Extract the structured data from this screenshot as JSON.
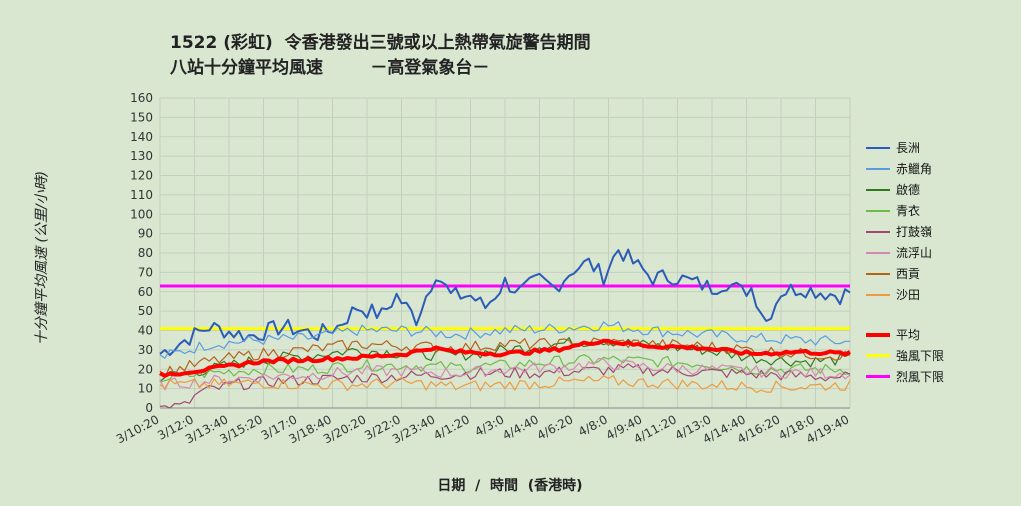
{
  "title_line1": "1522 (彩虹)  令香港發出三號或以上熱帶氣旋警告期間",
  "title_line2": "八站十分鐘平均風速        －高登氣象台－",
  "chart_data": {
    "type": "line",
    "xlabel": "日期  /  時間  (香港時)",
    "ylabel": "十分鐘平均風速 (公里/小時)",
    "ylim": [
      0,
      160
    ],
    "yticks": [
      0,
      10,
      20,
      30,
      40,
      50,
      60,
      70,
      80,
      90,
      100,
      110,
      120,
      130,
      140,
      150,
      160
    ],
    "grid": true,
    "legend_position": "right",
    "x_tick_labels": [
      "3/10:20",
      "3/12:0",
      "3/13:40",
      "3/15:20",
      "3/17:0",
      "3/18:40",
      "3/20:20",
      "3/22:0",
      "3/23:40",
      "4/1:20",
      "4/3:0",
      "4/4:40",
      "4/6:20",
      "4/8:0",
      "4/9:40",
      "4/11:20",
      "4/13:0",
      "4/14:40",
      "4/16:20",
      "4/18:0",
      "4/19:40"
    ],
    "reference_lines": [
      {
        "name": "強風下限",
        "value": 41,
        "color": "#ffff00"
      },
      {
        "name": "烈風下限",
        "value": 63,
        "color": "#ff00ff"
      }
    ],
    "series": [
      {
        "name": "長洲",
        "color": "#2a5cb8",
        "width": 2,
        "anchors": [
          [
            0,
            28
          ],
          [
            5,
            35
          ],
          [
            10,
            42
          ],
          [
            18,
            37
          ],
          [
            25,
            42
          ],
          [
            32,
            38
          ],
          [
            36,
            42
          ],
          [
            40,
            52
          ],
          [
            45,
            48
          ],
          [
            48,
            58
          ],
          [
            52,
            46
          ],
          [
            56,
            70
          ],
          [
            59,
            58
          ],
          [
            63,
            58
          ],
          [
            66,
            52
          ],
          [
            70,
            65
          ],
          [
            73,
            60
          ],
          [
            77,
            66
          ],
          [
            80,
            62
          ],
          [
            84,
            72
          ],
          [
            87,
            75
          ],
          [
            90,
            68
          ],
          [
            93,
            82
          ],
          [
            96,
            75
          ],
          [
            100,
            67
          ],
          [
            104,
            68
          ],
          [
            108,
            65
          ],
          [
            112,
            62
          ],
          [
            115,
            65
          ],
          [
            118,
            60
          ],
          [
            120,
            62
          ],
          [
            123,
            45
          ],
          [
            126,
            60
          ],
          [
            130,
            62
          ],
          [
            134,
            60
          ],
          [
            138,
            58
          ],
          [
            140,
            60
          ]
        ]
      },
      {
        "name": "赤鱲角",
        "color": "#5a9be0",
        "width": 1.2,
        "anchors": [
          [
            0,
            26
          ],
          [
            10,
            33
          ],
          [
            20,
            35
          ],
          [
            30,
            36
          ],
          [
            40,
            40
          ],
          [
            50,
            40
          ],
          [
            60,
            38
          ],
          [
            70,
            40
          ],
          [
            80,
            41
          ],
          [
            90,
            43
          ],
          [
            100,
            40
          ],
          [
            110,
            38
          ],
          [
            120,
            36
          ],
          [
            130,
            35
          ],
          [
            140,
            34
          ]
        ]
      },
      {
        "name": "啟德",
        "color": "#2e7a1e",
        "width": 1.2,
        "anchors": [
          [
            0,
            16
          ],
          [
            10,
            20
          ],
          [
            20,
            25
          ],
          [
            30,
            27
          ],
          [
            40,
            30
          ],
          [
            50,
            28
          ],
          [
            60,
            27
          ],
          [
            70,
            30
          ],
          [
            80,
            33
          ],
          [
            90,
            35
          ],
          [
            100,
            32
          ],
          [
            110,
            30
          ],
          [
            120,
            26
          ],
          [
            130,
            24
          ],
          [
            140,
            25
          ]
        ]
      },
      {
        "name": "青衣",
        "color": "#6fbb4a",
        "width": 1.2,
        "anchors": [
          [
            0,
            15
          ],
          [
            10,
            18
          ],
          [
            20,
            20
          ],
          [
            30,
            20
          ],
          [
            40,
            22
          ],
          [
            50,
            22
          ],
          [
            60,
            21
          ],
          [
            70,
            22
          ],
          [
            80,
            24
          ],
          [
            90,
            25
          ],
          [
            100,
            24
          ],
          [
            110,
            23
          ],
          [
            120,
            20
          ],
          [
            130,
            20
          ],
          [
            140,
            20
          ]
        ]
      },
      {
        "name": "打鼓嶺",
        "color": "#a04870",
        "width": 1.2,
        "anchors": [
          [
            0,
            0
          ],
          [
            5,
            1
          ],
          [
            8,
            8
          ],
          [
            15,
            12
          ],
          [
            25,
            14
          ],
          [
            35,
            15
          ],
          [
            45,
            16
          ],
          [
            55,
            17
          ],
          [
            65,
            18
          ],
          [
            75,
            18
          ],
          [
            85,
            19
          ],
          [
            95,
            20
          ],
          [
            105,
            19
          ],
          [
            115,
            18
          ],
          [
            125,
            17
          ],
          [
            135,
            16
          ],
          [
            140,
            16
          ]
        ]
      },
      {
        "name": "流浮山",
        "color": "#d38ab0",
        "width": 1.2,
        "anchors": [
          [
            0,
            12
          ],
          [
            10,
            14
          ],
          [
            20,
            16
          ],
          [
            30,
            17
          ],
          [
            40,
            19
          ],
          [
            50,
            19
          ],
          [
            60,
            18
          ],
          [
            70,
            20
          ],
          [
            80,
            21
          ],
          [
            90,
            23
          ],
          [
            100,
            21
          ],
          [
            110,
            20
          ],
          [
            120,
            19
          ],
          [
            130,
            18
          ],
          [
            140,
            18
          ]
        ]
      },
      {
        "name": "西貢",
        "color": "#b4621a",
        "width": 1.2,
        "anchors": [
          [
            0,
            18
          ],
          [
            10,
            24
          ],
          [
            20,
            28
          ],
          [
            30,
            30
          ],
          [
            40,
            33
          ],
          [
            50,
            32
          ],
          [
            60,
            31
          ],
          [
            70,
            33
          ],
          [
            80,
            33
          ],
          [
            90,
            34
          ],
          [
            100,
            33
          ],
          [
            110,
            32
          ],
          [
            120,
            30
          ],
          [
            130,
            28
          ],
          [
            140,
            27
          ]
        ]
      },
      {
        "name": "沙田",
        "color": "#eb9c3e",
        "width": 1.2,
        "anchors": [
          [
            0,
            12
          ],
          [
            10,
            12
          ],
          [
            20,
            13
          ],
          [
            30,
            12
          ],
          [
            40,
            12
          ],
          [
            50,
            13
          ],
          [
            60,
            11
          ],
          [
            70,
            12
          ],
          [
            80,
            13
          ],
          [
            90,
            14
          ],
          [
            100,
            13
          ],
          [
            110,
            12
          ],
          [
            120,
            11
          ],
          [
            130,
            11
          ],
          [
            140,
            12
          ]
        ]
      },
      {
        "name": "平均",
        "color": "#ff0000",
        "width": 4,
        "anchors": [
          [
            0,
            17
          ],
          [
            10,
            20
          ],
          [
            20,
            24
          ],
          [
            30,
            25
          ],
          [
            40,
            26
          ],
          [
            50,
            28
          ],
          [
            55,
            31
          ],
          [
            60,
            29
          ],
          [
            70,
            28
          ],
          [
            80,
            30
          ],
          [
            90,
            35
          ],
          [
            95,
            33
          ],
          [
            100,
            32
          ],
          [
            110,
            31
          ],
          [
            120,
            28
          ],
          [
            130,
            29
          ],
          [
            140,
            28
          ]
        ]
      }
    ]
  }
}
